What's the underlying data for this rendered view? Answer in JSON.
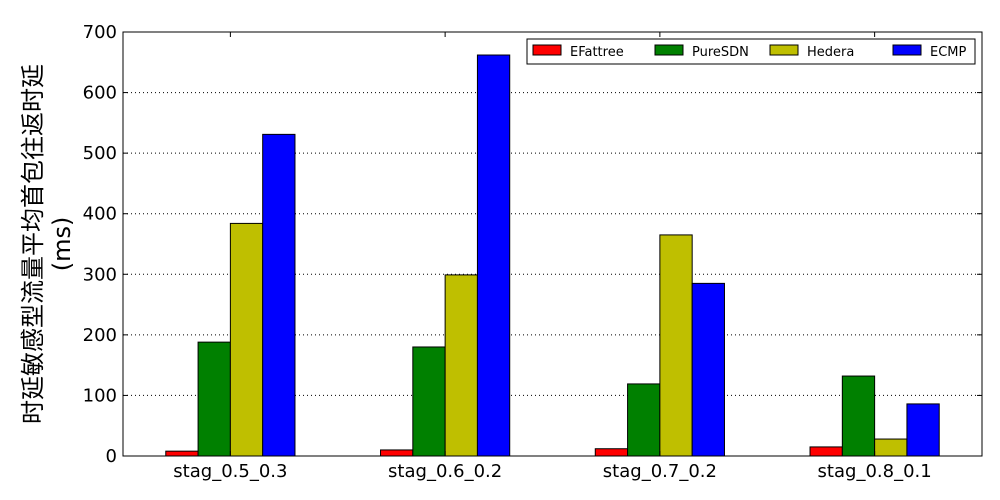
{
  "chart_data": {
    "type": "bar",
    "title": "",
    "xlabel": "",
    "ylabel": "时延敏感型流量平均首包往返时延",
    "ylabel_unit": "(ms)",
    "categories": [
      "stag_0.5_0.3",
      "stag_0.6_0.2",
      "stag_0.7_0.2",
      "stag_0.8_0.1"
    ],
    "ylim": [
      0,
      700
    ],
    "yticks": [
      0,
      100,
      200,
      300,
      400,
      500,
      600,
      700
    ],
    "grid": "horizontal dotted",
    "legend_position": "top-right",
    "series": [
      {
        "name": "EFattree",
        "color": "#ff0000",
        "values": [
          8,
          10,
          12,
          15
        ]
      },
      {
        "name": "PureSDN",
        "color": "#008000",
        "values": [
          188,
          180,
          119,
          132
        ]
      },
      {
        "name": "Hedera",
        "color": "#bfbf00",
        "values": [
          384,
          299,
          365,
          28
        ]
      },
      {
        "name": "ECMP",
        "color": "#0000ff",
        "values": [
          531,
          662,
          285,
          86
        ]
      }
    ]
  }
}
